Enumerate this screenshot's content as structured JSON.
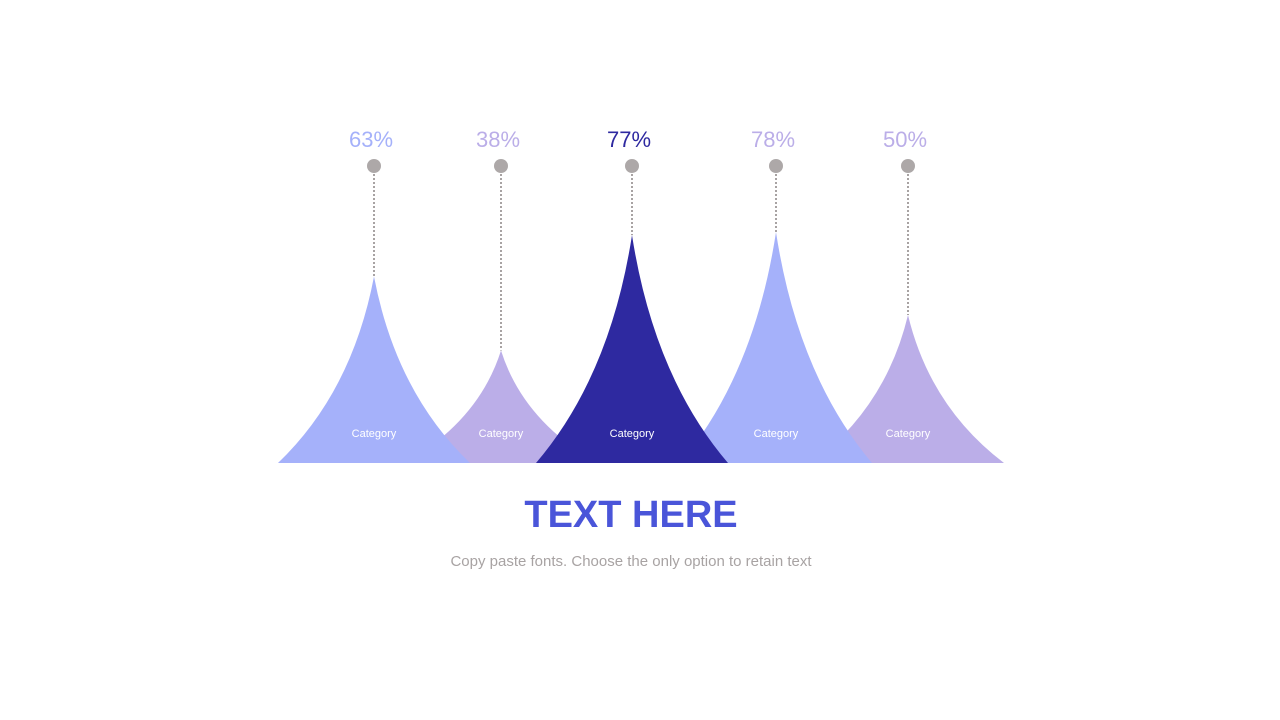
{
  "chart_data": {
    "type": "bar",
    "style": "concave-peak infographic",
    "categories": [
      "Category",
      "Category",
      "Category",
      "Category",
      "Category"
    ],
    "values": [
      63,
      38,
      77,
      78,
      50
    ],
    "value_labels": [
      "63%",
      "38%",
      "77%",
      "78%",
      "50%"
    ],
    "ylim": [
      0,
      100
    ],
    "grid": false,
    "colors": [
      "#a5b1fa",
      "#bbaee8",
      "#2e29a0",
      "#a5b1fa",
      "#bbaee8"
    ],
    "label_colors": [
      "#a5b1fa",
      "#bbaee8",
      "#2e29a0",
      "#bbaee8",
      "#bbaee8"
    ],
    "marker_color": "#ada8a8"
  },
  "title": "TEXT HERE",
  "subtitle": "Copy paste fonts. Choose the only option to retain text"
}
